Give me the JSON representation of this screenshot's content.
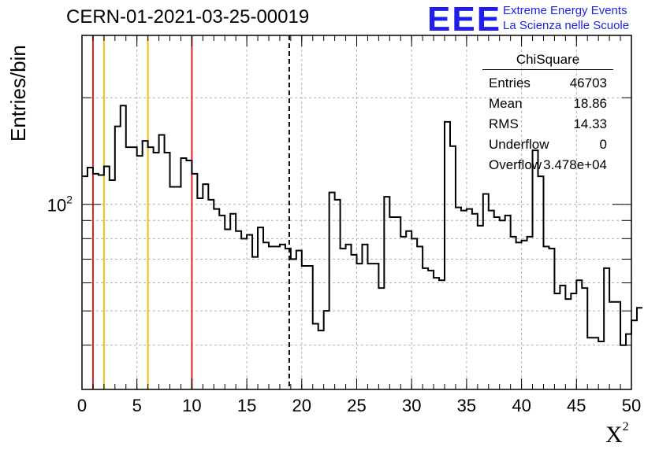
{
  "title": "CERN-01-2021-03-25-00019",
  "logo": {
    "mark": "EEE",
    "line1": "Extreme Energy Events",
    "line2": "La Scienza nelle Scuole"
  },
  "stats": {
    "name": "ChiSquare",
    "rows": [
      {
        "label": "Entries",
        "value": "46703"
      },
      {
        "label": "Mean",
        "value": "18.86"
      },
      {
        "label": "RMS",
        "value": "14.33"
      },
      {
        "label": "Underflow",
        "value": "0"
      },
      {
        "label": "Overflow",
        "value": "3.478e+04"
      }
    ]
  },
  "chart_data": {
    "type": "histogram",
    "title": "CERN-01-2021-03-25-00019",
    "xlabel": "X",
    "xlabel_sup": "2",
    "ylabel": "Entries/bin",
    "xlim": [
      0,
      50
    ],
    "ylim": [
      30,
      300
    ],
    "log_y": true,
    "grid": true,
    "bin_width": 0.5,
    "x_ticks": [
      "0",
      "5",
      "10",
      "15",
      "20",
      "25",
      "30",
      "35",
      "40",
      "45",
      "50"
    ],
    "y_tick_label": "10",
    "y_tick_sup": "2",
    "y_tick_value": 100,
    "values": [
      120,
      127,
      122,
      121,
      128,
      117,
      166,
      190,
      145,
      145,
      137,
      151,
      145,
      140,
      157,
      140,
      112,
      112,
      135,
      133,
      122,
      104,
      114,
      103,
      97,
      93,
      85,
      94,
      84,
      80,
      82,
      71,
      86,
      78,
      76,
      76,
      77,
      75,
      70,
      74,
      67,
      67,
      46,
      44,
      50,
      108,
      103,
      75,
      77,
      72,
      68,
      77,
      68,
      68,
      58,
      105,
      92,
      92,
      81,
      84,
      80,
      76,
      66,
      65,
      62,
      61,
      171,
      146,
      98,
      96,
      97,
      94,
      87,
      107,
      96,
      92,
      90,
      93,
      81,
      78,
      79,
      81,
      142,
      120,
      76,
      75,
      56,
      59,
      54,
      56,
      61,
      58,
      42,
      42,
      41,
      66,
      53,
      53,
      40,
      43,
      47,
      51
    ],
    "vlines": [
      {
        "x": 1,
        "color": "#e02020"
      },
      {
        "x": 2,
        "color": "#f0c010"
      },
      {
        "x": 6,
        "color": "#f0c010"
      },
      {
        "x": 10,
        "color": "#e02020"
      },
      {
        "x": 18.86,
        "color": "#000000",
        "dashed": true
      }
    ]
  }
}
